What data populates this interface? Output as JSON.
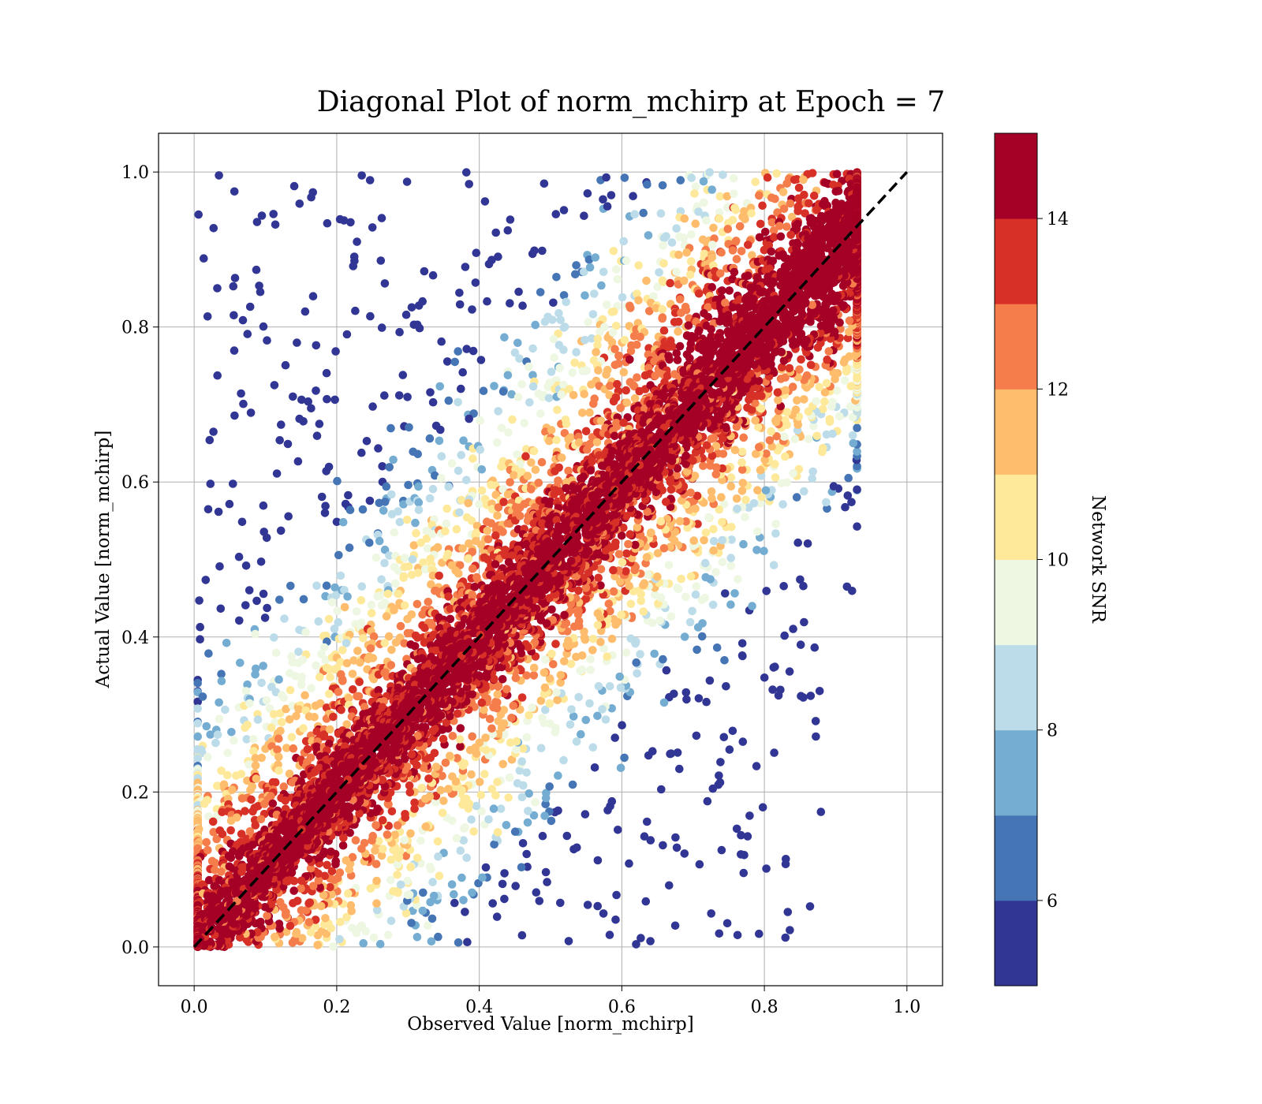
{
  "chart_data": {
    "type": "scatter",
    "title": "Diagonal Plot of norm_mchirp at Epoch = 7",
    "xlabel": "Observed Value [norm_mchirp]",
    "ylabel": "Actual Value [norm_mchirp]",
    "xlim": [
      -0.05,
      1.05
    ],
    "ylim": [
      -0.05,
      1.05
    ],
    "x_ticks": [
      "0.0",
      "0.2",
      "0.4",
      "0.6",
      "0.8",
      "1.0"
    ],
    "y_ticks": [
      "0.0",
      "0.2",
      "0.4",
      "0.6",
      "0.8",
      "1.0"
    ],
    "x_tick_values": [
      0,
      0.2,
      0.4,
      0.6,
      0.8,
      1.0
    ],
    "y_tick_values": [
      0,
      0.2,
      0.4,
      0.6,
      0.8,
      1.0
    ],
    "grid": true,
    "reference_line": {
      "from": [
        0,
        0
      ],
      "to": [
        1,
        1
      ],
      "style": "dashed",
      "color": "#000000"
    },
    "colorbar": {
      "label": "Network SNR",
      "range": [
        5,
        15
      ],
      "ticks": [
        "6",
        "8",
        "10",
        "12",
        "14"
      ],
      "tick_values": [
        6,
        8,
        10,
        12,
        14
      ],
      "colormap": "RdYlBu_r",
      "levels": [
        {
          "from": 5,
          "to": 6,
          "color": "#313695"
        },
        {
          "from": 6,
          "to": 7,
          "color": "#4575b4"
        },
        {
          "from": 7,
          "to": 8,
          "color": "#74add1"
        },
        {
          "from": 8,
          "to": 9,
          "color": "#bcdce9"
        },
        {
          "from": 9,
          "to": 10,
          "color": "#edf7e2"
        },
        {
          "from": 10,
          "to": 11,
          "color": "#fee99a"
        },
        {
          "from": 11,
          "to": 12,
          "color": "#fdbd6c"
        },
        {
          "from": 12,
          "to": 13,
          "color": "#f47d4b"
        },
        {
          "from": 13,
          "to": 14,
          "color": "#d73027"
        },
        {
          "from": 14,
          "to": 15,
          "color": "#a50026"
        }
      ]
    },
    "points_description": {
      "x_range": [
        0.0,
        0.93
      ],
      "y_range": [
        0.0,
        1.0
      ],
      "pattern": "dense high-SNR core along the diagonal, low-SNR points scattered away from it"
    }
  }
}
